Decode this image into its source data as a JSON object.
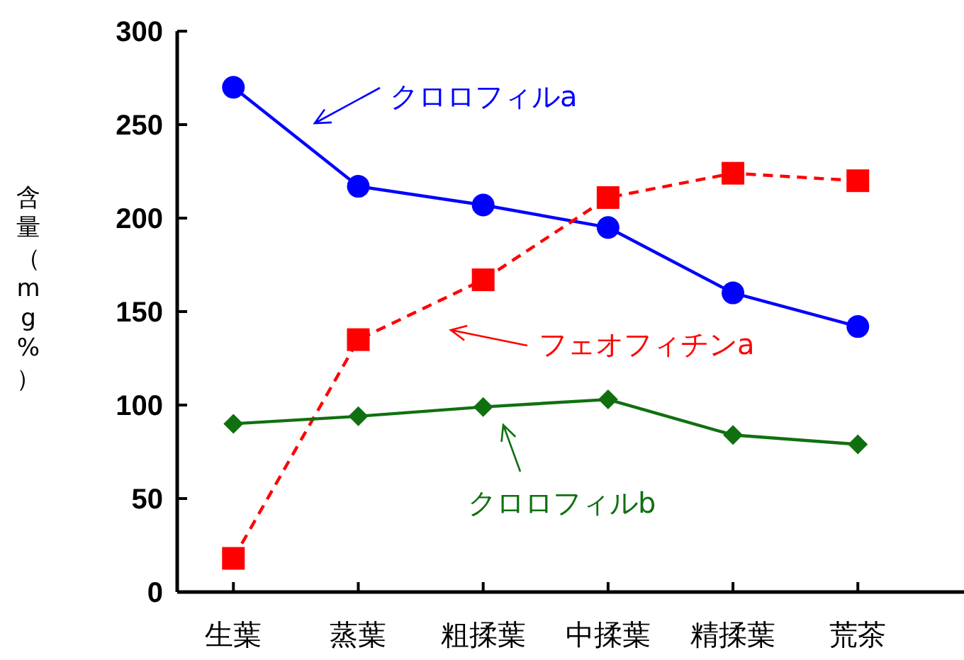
{
  "chart_data": {
    "type": "line",
    "ylabel": "含量（mg%）",
    "categories": [
      "生葉",
      "蒸葉",
      "粗揉葉",
      "中揉葉",
      "精揉葉",
      "荒茶"
    ],
    "ylim": [
      0,
      300
    ],
    "yticks": [
      0,
      50,
      100,
      150,
      200,
      250,
      300
    ],
    "grid": false,
    "legend": "top",
    "series": [
      {
        "name": "クロロフィルa",
        "color": "#0000ff",
        "marker": "circle",
        "line_style": "solid",
        "values": [
          270,
          217,
          207,
          195,
          160,
          142
        ]
      },
      {
        "name": "フェオフィチンa",
        "color": "#ff0000",
        "marker": "square",
        "line_style": "dashed",
        "values": [
          18,
          135,
          167,
          211,
          224,
          220
        ]
      },
      {
        "name": "クロロフィルb",
        "color": "#107010",
        "marker": "diamond",
        "line_style": "solid",
        "values": [
          90,
          94,
          99,
          103,
          84,
          79
        ]
      }
    ]
  }
}
